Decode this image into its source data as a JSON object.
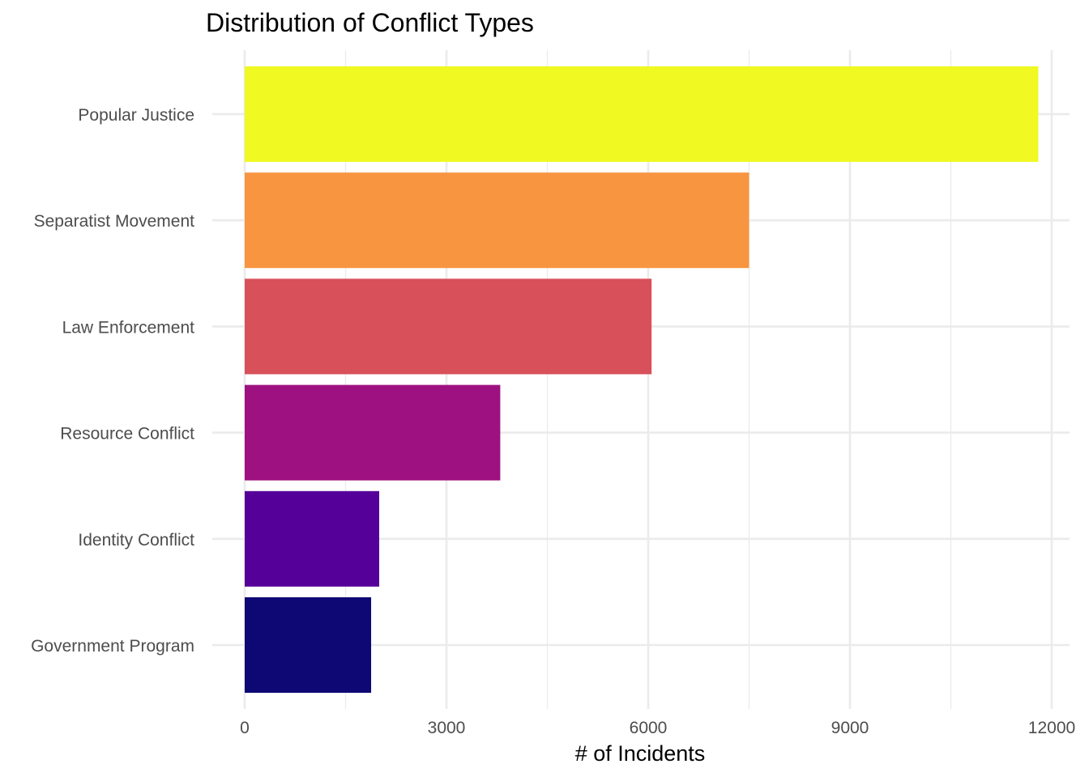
{
  "chart_data": {
    "type": "bar",
    "orientation": "horizontal",
    "title": "Distribution of Conflict Types",
    "xlabel": "# of Incidents",
    "ylabel": "",
    "xlim": [
      0,
      12000
    ],
    "x_ticks": [
      0,
      3000,
      6000,
      9000,
      12000
    ],
    "grid": true,
    "legend": "none",
    "categories": [
      "Popular Justice",
      "Separatist Movement",
      "Law Enforcement",
      "Resource Conflict",
      "Identity Conflict",
      "Government Program"
    ],
    "values": [
      11800,
      7500,
      6050,
      3800,
      2000,
      1880
    ],
    "colors": [
      "#F0F921",
      "#F89540",
      "#D8505A",
      "#9E1180",
      "#550099",
      "#0D0874"
    ]
  }
}
